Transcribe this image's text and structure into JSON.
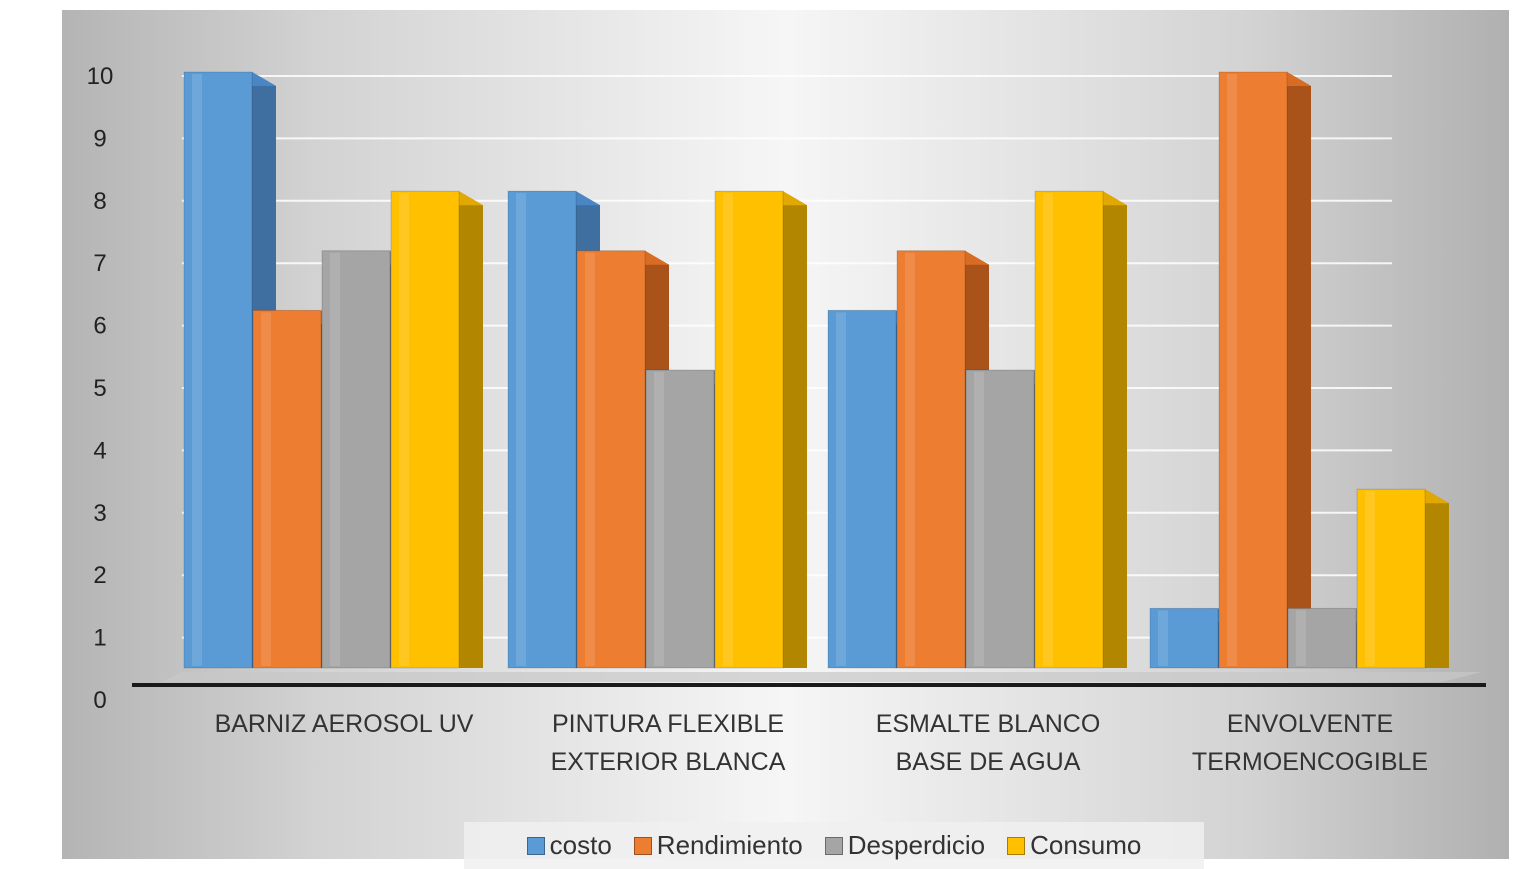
{
  "chart_data": {
    "type": "bar",
    "categories": [
      [
        "BARNIZ AEROSOL UV"
      ],
      [
        "PINTURA FLEXIBLE",
        "EXTERIOR BLANCA"
      ],
      [
        "ESMALTE BLANCO",
        "BASE DE AGUA"
      ],
      [
        "ENVOLVENTE",
        "TERMOENCOGIBLE"
      ]
    ],
    "series": [
      {
        "name": "costo",
        "values": [
          10,
          8,
          6,
          1
        ],
        "color": "#5b9bd5",
        "side": "#3f6fa0",
        "top": "#4a86c5"
      },
      {
        "name": "Rendimiento",
        "values": [
          6,
          7,
          7,
          10
        ],
        "color": "#ed7d31",
        "side": "#a9531a",
        "top": "#d86c24"
      },
      {
        "name": "Desperdicio",
        "values": [
          7,
          5,
          5,
          1
        ],
        "color": "#a5a5a5",
        "side": "#767676",
        "top": "#8e8e8e"
      },
      {
        "name": "Consumo",
        "values": [
          8,
          8,
          8,
          3
        ],
        "color": "#ffc000",
        "side": "#b38600",
        "top": "#e0a800"
      }
    ],
    "yticks": [
      0,
      1,
      2,
      3,
      4,
      5,
      6,
      7,
      8,
      9,
      10
    ],
    "ylim": [
      0,
      10
    ],
    "grid": true,
    "legend_position": "bottom",
    "title": "",
    "xlabel": "",
    "ylabel": ""
  },
  "legend": [
    {
      "label": "costo",
      "color": "#5b9bd5"
    },
    {
      "label": "Rendimiento",
      "color": "#ed7d31"
    },
    {
      "label": "Desperdicio",
      "color": "#a5a5a5"
    },
    {
      "label": "Consumo",
      "color": "#ffc000"
    }
  ]
}
